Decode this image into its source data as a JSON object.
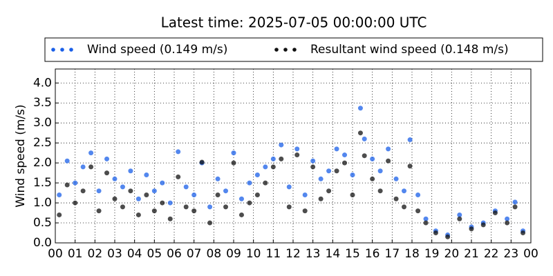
{
  "chart_data": {
    "type": "scatter",
    "title": "Latest time: 2025-07-05 00:00:00 UTC",
    "y_label": "Wind speed (m/s)",
    "grid": true,
    "legend": "top",
    "xlim": [
      0,
      24
    ],
    "ylim": [
      0,
      4.35
    ],
    "xticks": [
      {
        "value": 0,
        "label": "00"
      },
      {
        "value": 1,
        "label": "01"
      },
      {
        "value": 2,
        "label": "02"
      },
      {
        "value": 3,
        "label": "03"
      },
      {
        "value": 4,
        "label": "04"
      },
      {
        "value": 5,
        "label": "05"
      },
      {
        "value": 6,
        "label": "06"
      },
      {
        "value": 7,
        "label": "07"
      },
      {
        "value": 8,
        "label": "08"
      },
      {
        "value": 9,
        "label": "09"
      },
      {
        "value": 10,
        "label": "10"
      },
      {
        "value": 11,
        "label": "11"
      },
      {
        "value": 12,
        "label": "12"
      },
      {
        "value": 13,
        "label": "13"
      },
      {
        "value": 14,
        "label": "14"
      },
      {
        "value": 15,
        "label": "15"
      },
      {
        "value": 16,
        "label": "16"
      },
      {
        "value": 17,
        "label": "17"
      },
      {
        "value": 18,
        "label": "18"
      },
      {
        "value": 19,
        "label": "19"
      },
      {
        "value": 20,
        "label": "20"
      },
      {
        "value": 21,
        "label": "21"
      },
      {
        "value": 22,
        "label": "22"
      },
      {
        "value": 23,
        "label": "23"
      },
      {
        "value": 24,
        "label": "00"
      }
    ],
    "yticks": [
      {
        "value": 0,
        "label": "0.0"
      },
      {
        "value": 0.5,
        "label": "0.5"
      },
      {
        "value": 1,
        "label": "1.0"
      },
      {
        "value": 1.5,
        "label": "1.5"
      },
      {
        "value": 2,
        "label": "2.0"
      },
      {
        "value": 2.5,
        "label": "2.5"
      },
      {
        "value": 3,
        "label": "3.0"
      },
      {
        "value": 3.5,
        "label": "3.5"
      },
      {
        "value": 4,
        "label": "4.0"
      }
    ],
    "x": [
      0.2,
      0.6,
      1.0,
      1.4,
      1.8,
      2.2,
      2.6,
      3.0,
      3.4,
      3.8,
      4.2,
      4.6,
      5.0,
      5.4,
      5.8,
      6.2,
      6.6,
      7.0,
      7.4,
      7.8,
      8.2,
      8.6,
      9.0,
      9.4,
      9.8,
      10.2,
      10.6,
      11.0,
      11.4,
      11.8,
      12.2,
      12.6,
      13.0,
      13.4,
      13.8,
      14.2,
      14.6,
      15.0,
      15.4,
      15.6,
      16.0,
      16.4,
      16.8,
      17.2,
      17.6,
      17.9,
      18.3,
      18.7,
      19.2,
      19.8,
      20.4,
      21.0,
      21.6,
      22.2,
      22.8,
      23.2,
      23.6
    ],
    "series": [
      {
        "name": "Wind speed (0.149 m/s)",
        "color": "#1a5fe8",
        "values": [
          1.2,
          2.05,
          1.5,
          1.9,
          2.25,
          1.3,
          2.1,
          1.6,
          1.4,
          1.8,
          1.1,
          1.7,
          1.3,
          1.5,
          1.0,
          2.28,
          1.4,
          1.2,
          2.0,
          0.9,
          1.6,
          1.3,
          2.25,
          1.1,
          1.5,
          1.7,
          1.9,
          2.1,
          2.45,
          1.4,
          2.35,
          1.2,
          2.05,
          1.6,
          1.8,
          2.35,
          2.2,
          1.7,
          3.37,
          2.6,
          2.1,
          1.8,
          2.35,
          1.6,
          1.3,
          2.58,
          1.2,
          0.6,
          0.3,
          0.2,
          0.7,
          0.4,
          0.5,
          0.8,
          0.6,
          1.02,
          0.3
        ]
      },
      {
        "name": "Resultant wind speed (0.148 m/s)",
        "color": "#111111",
        "values": [
          0.7,
          1.45,
          1.0,
          1.3,
          1.9,
          0.8,
          1.75,
          1.1,
          0.9,
          1.3,
          0.7,
          1.2,
          0.8,
          1.0,
          0.6,
          1.65,
          0.9,
          0.8,
          2.02,
          0.5,
          1.2,
          0.9,
          2.0,
          0.7,
          1.0,
          1.2,
          1.5,
          1.9,
          2.1,
          0.9,
          2.2,
          0.8,
          1.9,
          1.1,
          1.3,
          1.8,
          2.0,
          1.2,
          2.75,
          2.18,
          1.6,
          1.3,
          2.05,
          1.1,
          0.9,
          1.92,
          0.8,
          0.5,
          0.25,
          0.15,
          0.6,
          0.35,
          0.45,
          0.75,
          0.5,
          0.9,
          0.25
        ]
      }
    ]
  }
}
